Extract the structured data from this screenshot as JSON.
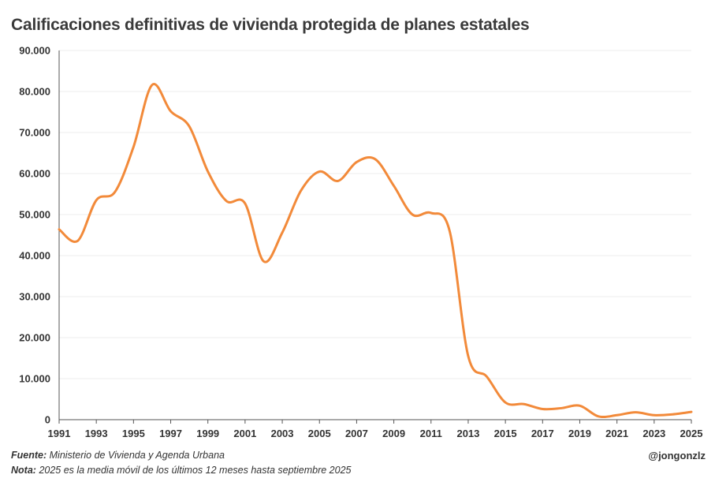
{
  "chart_data": {
    "type": "line",
    "title": "Calificaciones definitivas de vivienda protegida de planes estatales",
    "xlabel": "",
    "ylabel": "",
    "xlim": [
      1991,
      2025
    ],
    "ylim": [
      0,
      90000
    ],
    "y_ticks": [
      "0",
      "10.000",
      "20.000",
      "30.000",
      "40.000",
      "50.000",
      "60.000",
      "70.000",
      "80.000",
      "90.000"
    ],
    "y_tick_values": [
      0,
      10000,
      20000,
      30000,
      40000,
      50000,
      60000,
      70000,
      80000,
      90000
    ],
    "x_ticks": [
      "1991",
      "1993",
      "1995",
      "1997",
      "1999",
      "2001",
      "2003",
      "2005",
      "2007",
      "2009",
      "2011",
      "2013",
      "2015",
      "2017",
      "2019",
      "2021",
      "2023",
      "2025"
    ],
    "x_tick_values": [
      1991,
      1993,
      1995,
      1997,
      1999,
      2001,
      2003,
      2005,
      2007,
      2009,
      2011,
      2013,
      2015,
      2017,
      2019,
      2021,
      2023,
      2025
    ],
    "grid": true,
    "series": [
      {
        "name": "Calificaciones definitivas",
        "color": "#F28A3A",
        "x": [
          1991,
          1992,
          1993,
          1994,
          1995,
          1996,
          1997,
          1998,
          1999,
          2000,
          2001,
          2002,
          2003,
          2004,
          2005,
          2006,
          2007,
          2008,
          2009,
          2010,
          2011,
          2012,
          2013,
          2014,
          2015,
          2016,
          2017,
          2018,
          2019,
          2020,
          2021,
          2022,
          2023,
          2024,
          2025
        ],
        "values": [
          46400,
          43600,
          53500,
          55500,
          66500,
          81600,
          75200,
          71500,
          60500,
          53300,
          52700,
          38600,
          45600,
          55800,
          60500,
          58200,
          62800,
          63500,
          57000,
          50000,
          50400,
          46000,
          15500,
          10500,
          4200,
          3800,
          2600,
          2800,
          3400,
          800,
          1100,
          1800,
          1100,
          1300,
          1900
        ]
      }
    ]
  },
  "footer": {
    "fuente_label": "Fuente:",
    "fuente_text": "Ministerio de Vivienda y Agenda Urbana",
    "nota_label": "Nota:",
    "nota_text": "2025 es la media móvil de los últimos 12 meses hasta septiembre 2025",
    "credit": "@jongonzlz"
  }
}
